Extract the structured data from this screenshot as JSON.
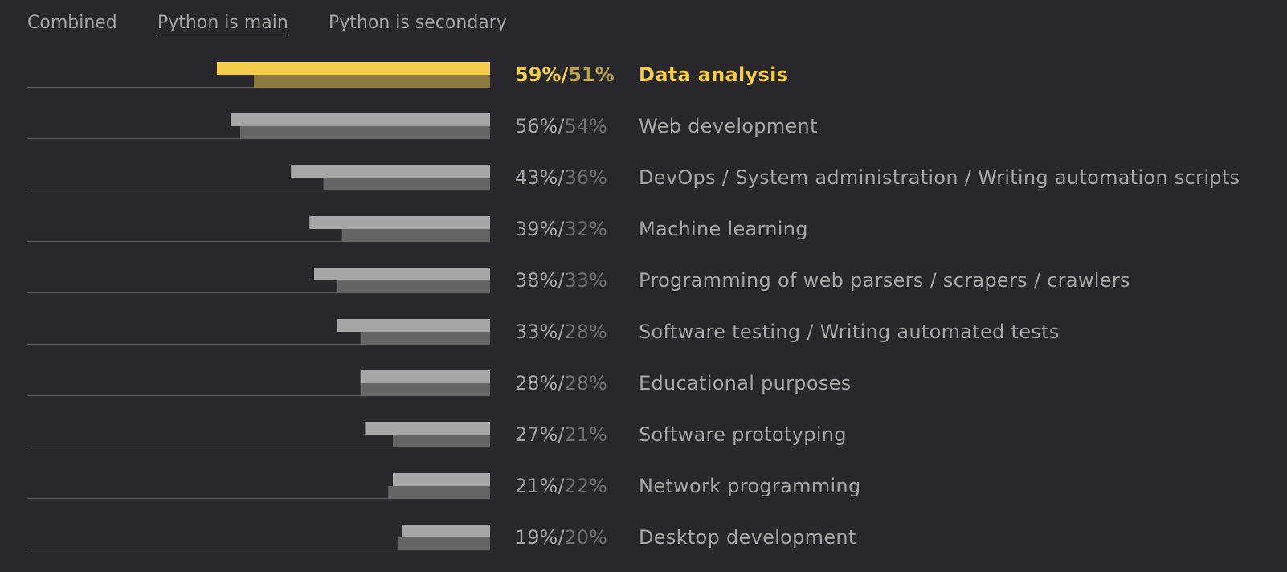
{
  "tabs": [
    {
      "label": "Combined",
      "active": false
    },
    {
      "label": "Python is main",
      "active": true
    },
    {
      "label": "Python is secondary",
      "active": false
    }
  ],
  "colors": {
    "background": "#27272c",
    "main_bar": "#a6a6a6",
    "secondary_bar": "#656565",
    "text": "#a6a6a6",
    "secondary_text": "#707070",
    "axis_line": "#555555",
    "highlight_main": "#f5cd4c",
    "highlight_secondary": "#8d7a3e"
  },
  "chart_data": {
    "type": "bar",
    "orientation": "horizontal",
    "xlim": [
      0,
      100
    ],
    "highlighted_index": 0,
    "series": [
      {
        "name": "Python is main",
        "values": [
          59,
          56,
          43,
          39,
          38,
          33,
          28,
          27,
          21,
          19
        ]
      },
      {
        "name": "Python is secondary",
        "values": [
          51,
          54,
          36,
          32,
          33,
          28,
          28,
          21,
          22,
          20
        ]
      }
    ],
    "categories": [
      "Data analysis",
      "Web development",
      "DevOps / System administration / Writing automation scripts",
      "Machine learning",
      "Programming of web parsers / scrapers / crawlers",
      "Software testing / Writing automated tests",
      "Educational purposes",
      "Software prototyping",
      "Network programming",
      "Desktop development"
    ],
    "labels_main": [
      "59%/",
      "56%/",
      "43%/",
      "39%/",
      "38%/",
      "33%/",
      "28%/",
      "27%/",
      "21%/",
      "19%/"
    ],
    "labels_secondary": [
      "51%",
      "54%",
      "36%",
      "32%",
      "33%",
      "28%",
      "28%",
      "21%",
      "22%",
      "20%"
    ]
  }
}
